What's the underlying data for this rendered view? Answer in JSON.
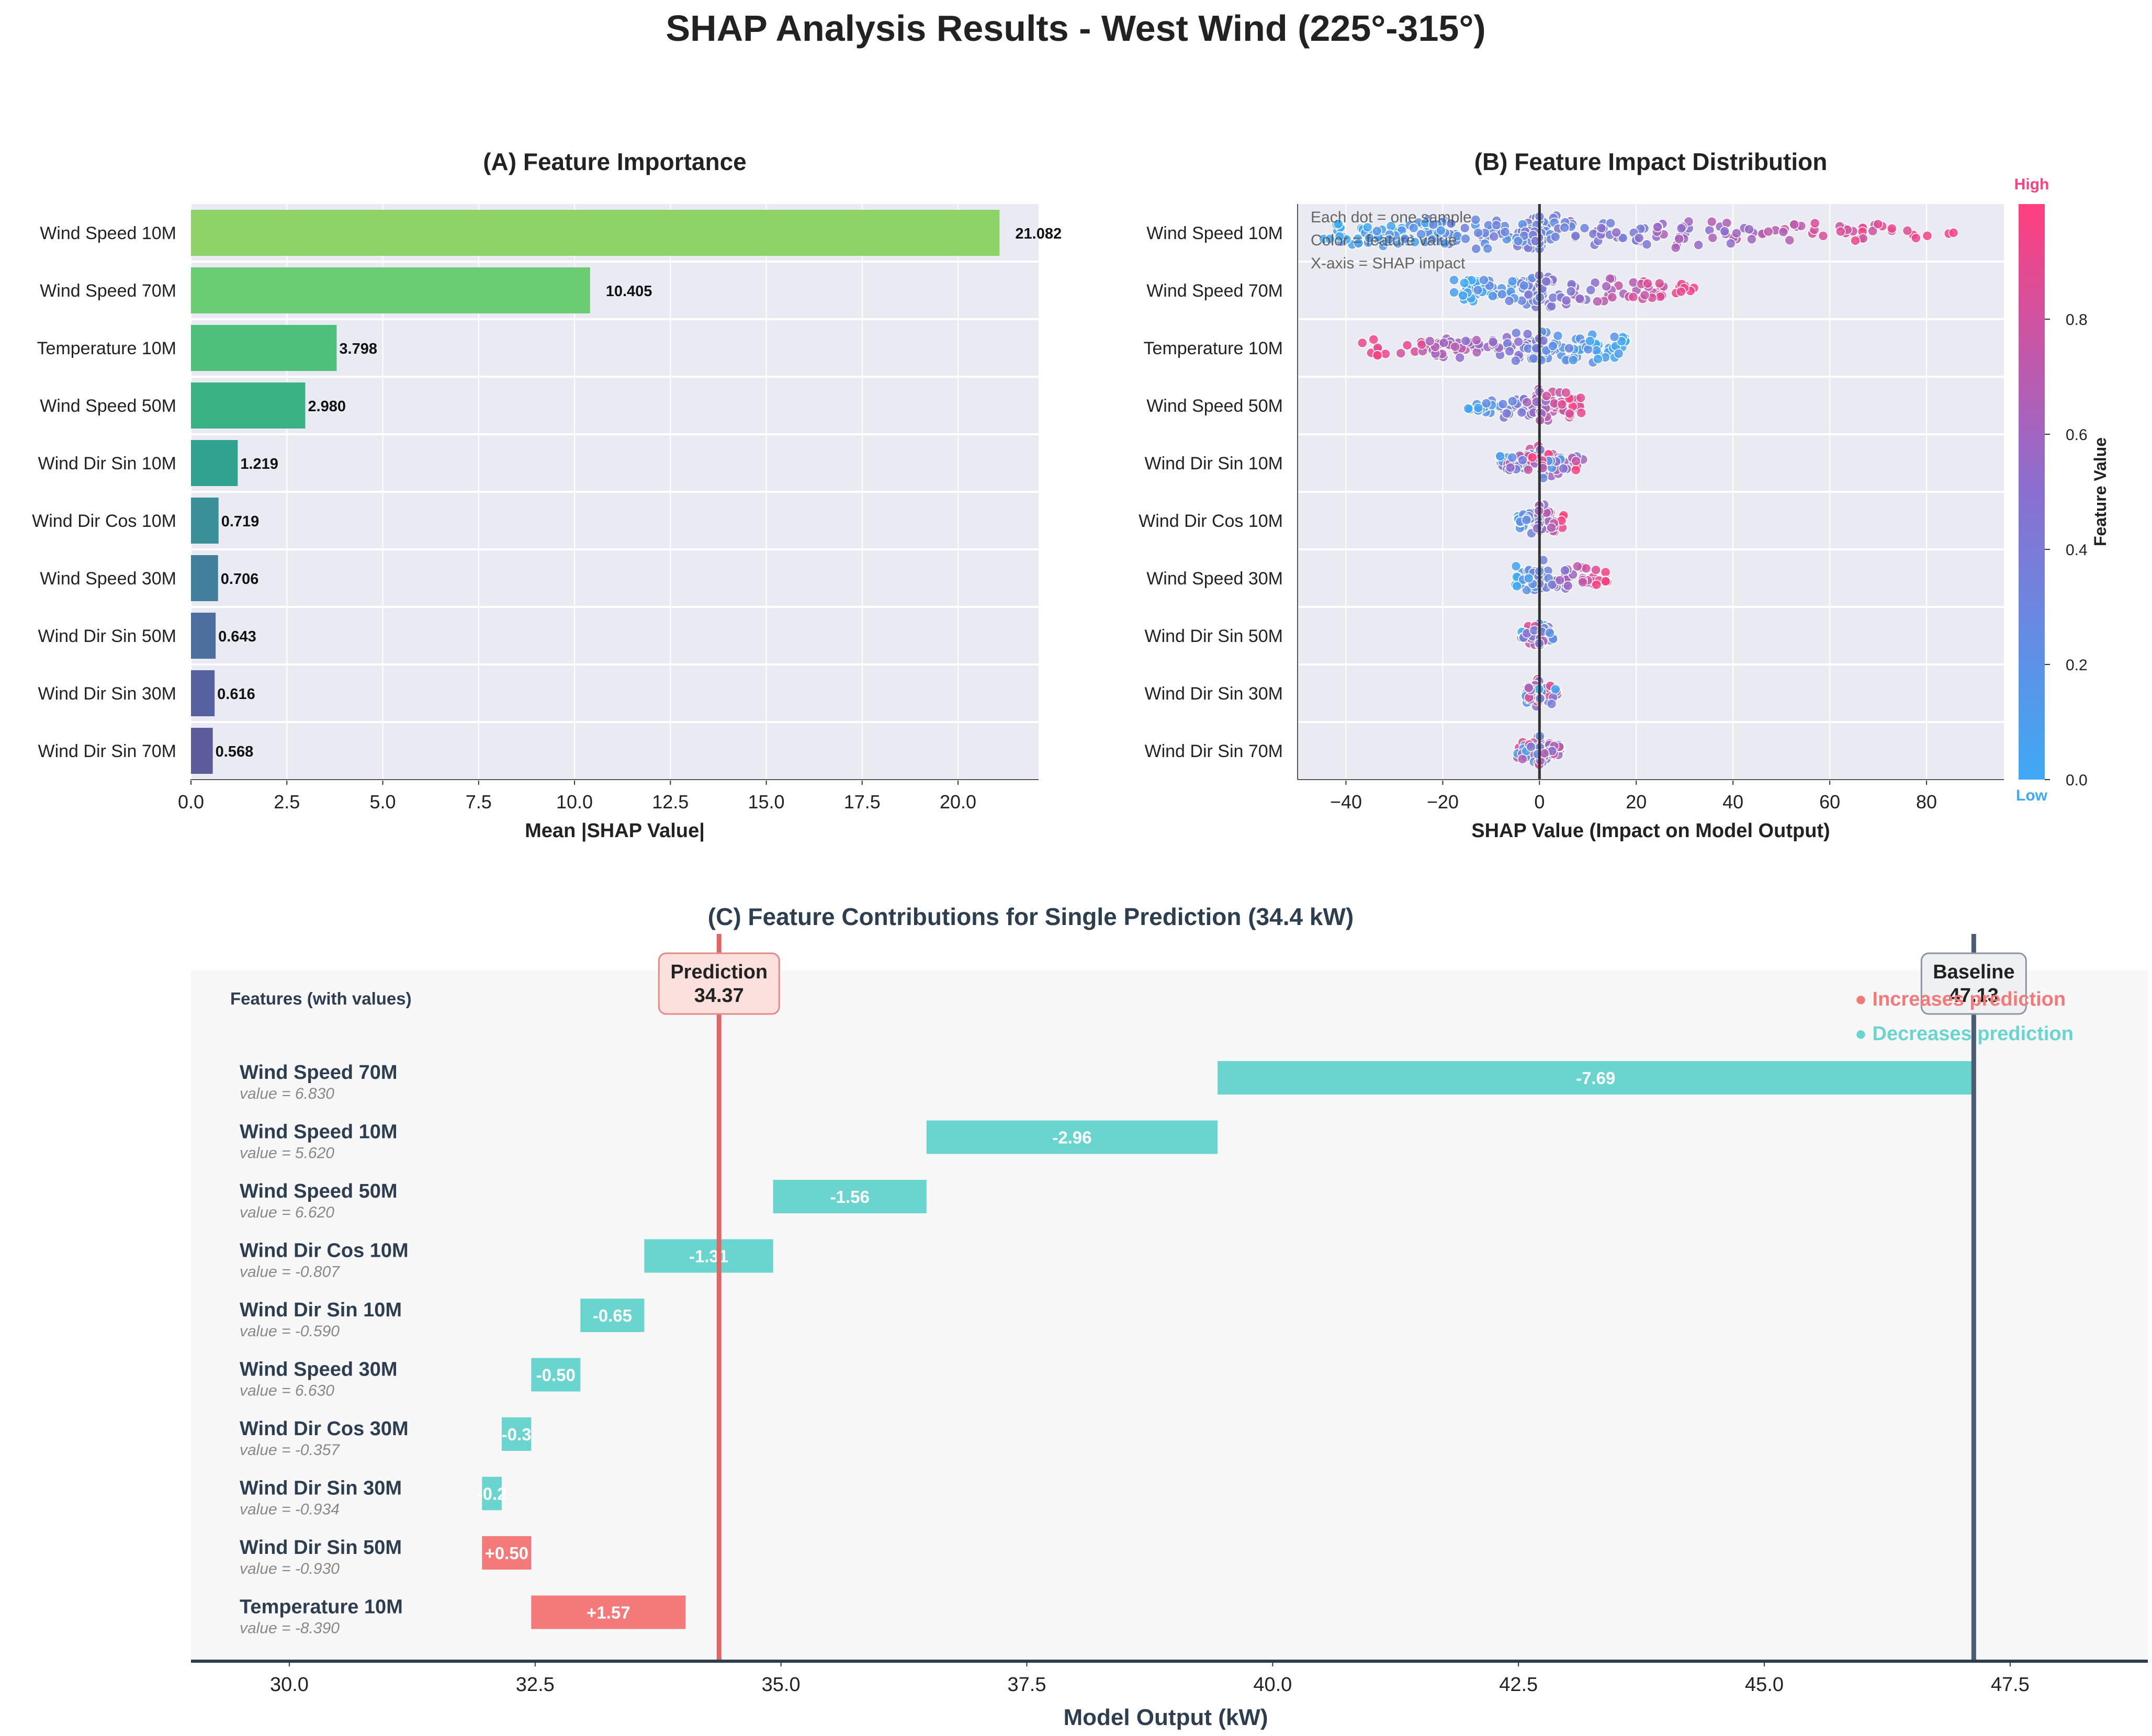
{
  "title": "SHAP Analysis Results - West Wind (225°-315°)",
  "colors": {
    "panel_bg": "#eaeaf2",
    "waterfall_bg": "#f7f7f8",
    "increase": "#f47a7a",
    "decrease": "#6ad4cf",
    "prediction_line": "#e06666",
    "baseline_line": "#4a5d75",
    "dark_text": "#2c3e50",
    "cbar_low": "#3fa9f5",
    "cbar_high": "#ff3f7f"
  },
  "chart_data": [
    {
      "type": "bar",
      "orientation": "horizontal",
      "title": "(A) Feature Importance",
      "xlabel": "Mean |SHAP Value|",
      "ylabel": "",
      "xlim": [
        0,
        22.1
      ],
      "xticks": [
        "0.0",
        "2.5",
        "5.0",
        "7.5",
        "10.0",
        "12.5",
        "15.0",
        "17.5",
        "20.0"
      ],
      "grid": true,
      "categories": [
        "Wind Speed 10M",
        "Wind Speed 70M",
        "Temperature 10M",
        "Wind Speed 50M",
        "Wind Dir Sin 10M",
        "Wind Dir Cos 10M",
        "Wind Speed 30M",
        "Wind Dir Sin 50M",
        "Wind Dir Sin 30M",
        "Wind Dir Sin 70M"
      ],
      "values": [
        21.082,
        10.405,
        3.798,
        2.98,
        1.219,
        0.719,
        0.706,
        0.643,
        0.616,
        0.568
      ],
      "value_labels": [
        "21.082",
        "10.405",
        "3.798",
        "2.980",
        "1.219",
        "0.719",
        "0.706",
        "0.643",
        "0.616",
        "0.568"
      ],
      "bar_colors": [
        "#8ed367",
        "#6acc73",
        "#4fbf7c",
        "#3bb284",
        "#31a190",
        "#3a8f98",
        "#417f9c",
        "#4d6fa0",
        "#5662a0",
        "#5c5b9b"
      ]
    },
    {
      "type": "scatter",
      "subtype": "beeswarm",
      "title": "(B) Feature Impact Distribution",
      "xlabel": "SHAP Value (Impact on Model Output)",
      "ylabel": "",
      "xlim": [
        -50,
        96
      ],
      "xticks": [
        "−40",
        "−20",
        "0",
        "20",
        "40",
        "60",
        "80"
      ],
      "grid": true,
      "annotation": [
        "Each dot = one sample",
        "Color = feature value",
        "X-axis = SHAP impact"
      ],
      "features": [
        {
          "name": "Wind Speed 10M",
          "min": -45,
          "max": 89,
          "low_side": "left"
        },
        {
          "name": "Wind Speed 70M",
          "min": -18,
          "max": 33,
          "low_side": "left"
        },
        {
          "name": "Temperature 10M",
          "min": -37,
          "max": 18,
          "low_side": "right"
        },
        {
          "name": "Wind Speed 50M",
          "min": -15,
          "max": 9,
          "low_side": "left"
        },
        {
          "name": "Wind Dir Sin 10M",
          "min": -9,
          "max": 9,
          "low_side": "mixed"
        },
        {
          "name": "Wind Dir Cos 10M",
          "min": -5,
          "max": 5,
          "low_side": "left"
        },
        {
          "name": "Wind Speed 30M",
          "min": -5,
          "max": 14,
          "low_side": "left"
        },
        {
          "name": "Wind Dir Sin 50M",
          "min": -4,
          "max": 3,
          "low_side": "mixed"
        },
        {
          "name": "Wind Dir Sin 30M",
          "min": -3,
          "max": 4,
          "low_side": "mixed"
        },
        {
          "name": "Wind Dir Sin 70M",
          "min": -5,
          "max": 5,
          "low_side": "mixed"
        }
      ],
      "colorbar": {
        "label": "Feature Value",
        "high_label": "High",
        "low_label": "Low",
        "ticks": [
          "0.0",
          "0.2",
          "0.4",
          "0.6",
          "0.8"
        ],
        "range": [
          0,
          1
        ]
      }
    },
    {
      "type": "bar",
      "subtype": "waterfall",
      "title": "(C) Feature Contributions for Single Prediction (34.4 kW)",
      "xlabel": "Model Output (kW)",
      "ylabel": "",
      "xlim": [
        29.0,
        48.9
      ],
      "xticks": [
        "30.0",
        "32.5",
        "35.0",
        "37.5",
        "40.0",
        "42.5",
        "45.0",
        "47.5"
      ],
      "column_header": "Features (with values)",
      "baseline": {
        "label": "Baseline",
        "value": 47.13,
        "display": "47.13"
      },
      "prediction": {
        "label": "Prediction",
        "value": 34.37,
        "display": "34.37"
      },
      "legend": [
        "● Increases prediction",
        "● Decreases prediction"
      ],
      "steps": [
        {
          "feature": "Wind Speed 70M",
          "value_text": "value = 6.830",
          "delta": -7.69,
          "label": "-7.69",
          "start": 47.13,
          "end": 39.44
        },
        {
          "feature": "Wind Speed 10M",
          "value_text": "value = 5.620",
          "delta": -2.96,
          "label": "-2.96",
          "start": 39.44,
          "end": 36.48
        },
        {
          "feature": "Wind Speed 50M",
          "value_text": "value = 6.620",
          "delta": -1.56,
          "label": "-1.56",
          "start": 36.48,
          "end": 34.92
        },
        {
          "feature": "Wind Dir Cos 10M",
          "value_text": "value = -0.807",
          "delta": -1.31,
          "label": "-1.31",
          "start": 34.92,
          "end": 33.61
        },
        {
          "feature": "Wind Dir Sin 10M",
          "value_text": "value = -0.590",
          "delta": -0.65,
          "label": "-0.65",
          "start": 33.61,
          "end": 32.96
        },
        {
          "feature": "Wind Speed 30M",
          "value_text": "value = 6.630",
          "delta": -0.5,
          "label": "-0.50",
          "start": 32.96,
          "end": 32.46
        },
        {
          "feature": "Wind Dir Cos 30M",
          "value_text": "value = -0.357",
          "delta": -0.3,
          "label": "-0.3",
          "start": 32.46,
          "end": 32.16
        },
        {
          "feature": "Wind Dir Sin 30M",
          "value_text": "value = -0.934",
          "delta": -0.2,
          "label": "-0.2",
          "start": 32.16,
          "end": 31.96
        },
        {
          "feature": "Wind Dir Sin 50M",
          "value_text": "value = -0.930",
          "delta": 0.5,
          "label": "+0.50",
          "start": 31.96,
          "end": 32.46
        },
        {
          "feature": "Temperature 10M",
          "value_text": "value = -8.390",
          "delta": 1.57,
          "label": "+1.57",
          "start": 32.46,
          "end": 34.03
        }
      ]
    }
  ]
}
